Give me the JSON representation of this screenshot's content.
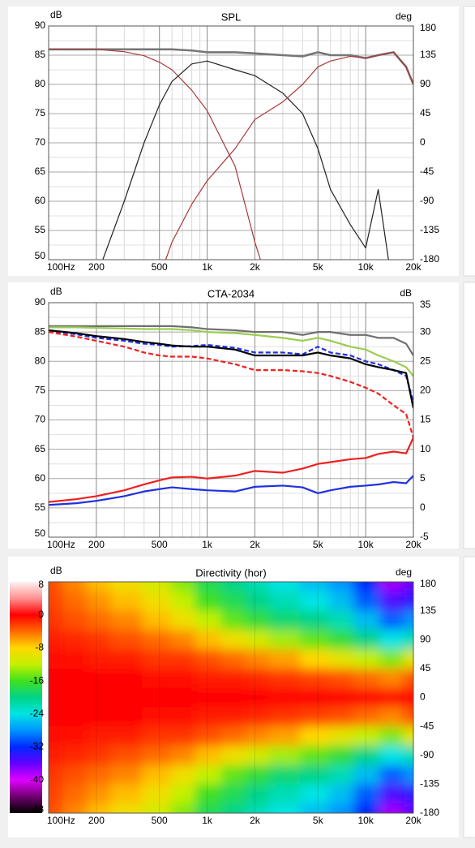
{
  "chart_data": [
    {
      "type": "line",
      "title": "SPL",
      "ylabel": "dB",
      "y2label": "deg",
      "x": [
        100,
        150,
        200,
        300,
        400,
        500,
        600,
        800,
        1000,
        1500,
        2000,
        3000,
        4000,
        5000,
        6000,
        8000,
        10000,
        12000,
        15000,
        18000,
        20000
      ],
      "xlim": [
        100,
        20000
      ],
      "log_x": true,
      "xticks": [
        {
          "value": 100,
          "label": "100Hz"
        },
        200,
        500,
        {
          "value": 1000,
          "label": "1k"
        },
        {
          "value": 2000,
          "label": "2k"
        },
        {
          "value": 5000,
          "label": "5k"
        },
        {
          "value": 10000,
          "label": "10k"
        },
        {
          "value": 20000,
          "label": "20k"
        }
      ],
      "ylim": [
        50,
        90
      ],
      "yticks": [
        90,
        85,
        80,
        75,
        70,
        65,
        60,
        55,
        50
      ],
      "y2lim": [
        -180,
        180
      ],
      "y2ticks": [
        180,
        135,
        90,
        45,
        0,
        -45,
        -90,
        -135,
        -180
      ],
      "grid": true,
      "series": [
        {
          "color": "#777777",
          "values": [
            86,
            86,
            86,
            86,
            86,
            86,
            86,
            85.8,
            85.5,
            85.5,
            85.3,
            85,
            84.8,
            85.5,
            85,
            85,
            84.5,
            85,
            85.5,
            83,
            80
          ]
        },
        {
          "color": "#a83a3a",
          "values": [
            86,
            86,
            86,
            85.6,
            84.9,
            83.8,
            82.5,
            79,
            75.5,
            66,
            53,
            38,
            null,
            null,
            null,
            null,
            null,
            null,
            null,
            null,
            null
          ]
        },
        {
          "color": "#222222",
          "values": [
            null,
            35,
            47,
            60,
            70,
            76.5,
            80.5,
            83.5,
            84,
            82.5,
            81.5,
            78.5,
            75,
            69,
            62,
            56,
            52,
            62,
            44,
            null,
            null
          ]
        },
        {
          "color": "#a83a3a",
          "values": [
            null,
            null,
            null,
            null,
            null,
            47,
            53,
            59.5,
            63.5,
            69,
            74,
            77,
            80,
            83,
            84,
            84.8,
            84.5,
            85,
            85.5,
            83,
            80
          ]
        }
      ]
    },
    {
      "type": "line",
      "title": "CTA-2034",
      "ylabel": "dB",
      "y2label": "dB",
      "x": [
        100,
        150,
        200,
        300,
        400,
        500,
        600,
        800,
        1000,
        1500,
        2000,
        3000,
        4000,
        5000,
        6000,
        8000,
        10000,
        12000,
        15000,
        18000,
        20000
      ],
      "xlim": [
        100,
        20000
      ],
      "log_x": true,
      "xticks": [
        {
          "value": 100,
          "label": "100Hz"
        },
        200,
        500,
        {
          "value": 1000,
          "label": "1k"
        },
        {
          "value": 2000,
          "label": "2k"
        },
        {
          "value": 5000,
          "label": "5k"
        },
        {
          "value": 10000,
          "label": "10k"
        },
        {
          "value": 20000,
          "label": "20k"
        }
      ],
      "ylim": [
        50,
        90
      ],
      "yticks": [
        90,
        85,
        80,
        75,
        70,
        65,
        60,
        55,
        50
      ],
      "y2lim": [
        -5,
        35
      ],
      "y2ticks": [
        35,
        30,
        25,
        20,
        15,
        10,
        5,
        0,
        -5
      ],
      "grid": true,
      "series": [
        {
          "color": "#707070",
          "values": [
            86,
            86,
            86,
            86,
            86,
            86,
            86,
            85.8,
            85.5,
            85.3,
            85,
            85,
            84.5,
            85,
            85,
            84.5,
            84.5,
            84,
            84,
            83,
            81
          ]
        },
        {
          "color": "#9acd50",
          "values": [
            85.8,
            85.8,
            85.7,
            85.6,
            85.5,
            85.5,
            85.5,
            85.3,
            85,
            84.8,
            84.5,
            84,
            83.5,
            84,
            83.5,
            82.5,
            82,
            81,
            80,
            79,
            77.5
          ]
        },
        {
          "color": "#2030e0",
          "dashed": true,
          "values": [
            85.2,
            84.6,
            84,
            83.5,
            83,
            82.8,
            82.5,
            82.6,
            82.8,
            82.3,
            81.5,
            81.5,
            81.2,
            82.5,
            81.5,
            81,
            80,
            79.5,
            78.5,
            77.5,
            73
          ]
        },
        {
          "color": "#000000",
          "values": [
            85.3,
            84.8,
            84.3,
            83.8,
            83.3,
            83,
            82.7,
            82.5,
            82.5,
            82,
            81,
            81,
            81,
            81.5,
            81,
            80.5,
            79.5,
            79,
            78.5,
            78,
            72
          ]
        },
        {
          "color": "#ee2020",
          "dashed": true,
          "values": [
            85,
            84.2,
            83.5,
            82.5,
            81.5,
            81,
            80.8,
            80.8,
            80.5,
            79.5,
            78.5,
            78.5,
            78.3,
            78,
            77.5,
            76.5,
            75.5,
            74.5,
            72.5,
            71,
            67
          ]
        },
        {
          "color": "#ee2020",
          "axis": "y2",
          "values": [
            1,
            1.5,
            2,
            3,
            4,
            4.7,
            5.2,
            5.3,
            5,
            5.5,
            6.3,
            6,
            6.7,
            7.5,
            7.8,
            8.3,
            8.5,
            9.2,
            9.6,
            9.3,
            12
          ]
        },
        {
          "color": "#2030e0",
          "axis": "y2",
          "values": [
            0.5,
            0.8,
            1.2,
            2,
            2.8,
            3.2,
            3.5,
            3.2,
            3,
            2.8,
            3.6,
            3.8,
            3.5,
            2.5,
            3,
            3.6,
            3.8,
            4,
            4.4,
            4.2,
            5.5
          ]
        }
      ]
    },
    {
      "type": "heatmap",
      "title": "Directivity (hor)",
      "ylabel": "dB",
      "y2label": "deg",
      "x": [
        100,
        150,
        200,
        300,
        500,
        700,
        1000,
        1500,
        2000,
        3000,
        5000,
        7000,
        10000,
        15000,
        20000
      ],
      "y": [
        180,
        150,
        120,
        90,
        60,
        30,
        0,
        -30,
        -60,
        -90,
        -120,
        -150,
        -180
      ],
      "xlim": [
        100,
        20000
      ],
      "log_x": true,
      "xticks": [
        {
          "value": 100,
          "label": "100Hz"
        },
        200,
        500,
        {
          "value": 1000,
          "label": "1k"
        },
        {
          "value": 2000,
          "label": "2k"
        },
        {
          "value": 5000,
          "label": "5k"
        },
        {
          "value": 10000,
          "label": "10k"
        },
        {
          "value": 20000,
          "label": "20k"
        }
      ],
      "y2lim": [
        -180,
        180
      ],
      "y2ticks": [
        180,
        135,
        90,
        45,
        0,
        -45,
        -90,
        -135,
        -180
      ],
      "clim": [
        -48,
        8
      ],
      "cticks": [
        8,
        0,
        -8,
        -16,
        -24,
        -32,
        -40,
        -48
      ],
      "colorscale": [
        "#fff2f2",
        "#ff9090",
        "#ff0000",
        "#ff6a00",
        "#ffd800",
        "#c4f000",
        "#40e020",
        "#00d488",
        "#00e4e4",
        "#0094ff",
        "#0028ff",
        "#6400ff",
        "#e000ff",
        "#700070",
        "#000000"
      ],
      "grid": false,
      "z": [
        [
          -3,
          -5,
          -7,
          -9,
          -11,
          -14,
          -18,
          -20,
          -22,
          -24,
          -26,
          -28,
          -32,
          -38,
          -36
        ],
        [
          -2.5,
          -4,
          -5.5,
          -7,
          -9,
          -12,
          -16,
          -18,
          -20,
          -22,
          -24,
          -26,
          -30,
          -35,
          -34
        ],
        [
          -2,
          -3,
          -4,
          -5,
          -7,
          -9,
          -12,
          -15,
          -17,
          -19,
          -20,
          -22,
          -26,
          -30,
          -28
        ],
        [
          -1,
          -1.5,
          -2,
          -3,
          -4,
          -5,
          -7,
          -9,
          -11,
          -13,
          -15,
          -17,
          -20,
          -24,
          -22
        ],
        [
          -0.5,
          -0.5,
          -1,
          -1,
          -2,
          -2,
          -3,
          -4,
          -5,
          -6,
          -8,
          -10,
          -12,
          -14,
          -10
        ],
        [
          0,
          0,
          0,
          0,
          -0.5,
          -0.5,
          -1,
          -1,
          -1.5,
          -2,
          -2.5,
          -3,
          -4,
          -5,
          -3
        ],
        [
          0,
          0,
          0,
          0,
          0,
          0,
          0,
          0,
          0,
          0,
          0,
          0,
          0,
          0,
          0
        ],
        [
          0,
          0,
          0,
          0,
          -0.5,
          -0.5,
          -1,
          -1,
          -1.5,
          -2,
          -2.5,
          -3,
          -4,
          -5,
          -3
        ],
        [
          -0.5,
          -0.5,
          -1,
          -1,
          -2,
          -2,
          -3,
          -4,
          -5,
          -6,
          -8,
          -10,
          -12,
          -14,
          -10
        ],
        [
          -1,
          -1.5,
          -2,
          -3,
          -4,
          -5,
          -7,
          -9,
          -11,
          -13,
          -15,
          -17,
          -20,
          -24,
          -22
        ],
        [
          -2,
          -3,
          -4,
          -5,
          -7,
          -9,
          -12,
          -15,
          -17,
          -19,
          -20,
          -22,
          -26,
          -30,
          -28
        ],
        [
          -2.5,
          -4,
          -5.5,
          -7,
          -9,
          -12,
          -16,
          -18,
          -20,
          -22,
          -24,
          -26,
          -30,
          -35,
          -34
        ],
        [
          -3,
          -5,
          -7,
          -9,
          -11,
          -14,
          -18,
          -20,
          -22,
          -24,
          -26,
          -28,
          -32,
          -38,
          -36
        ]
      ]
    }
  ]
}
